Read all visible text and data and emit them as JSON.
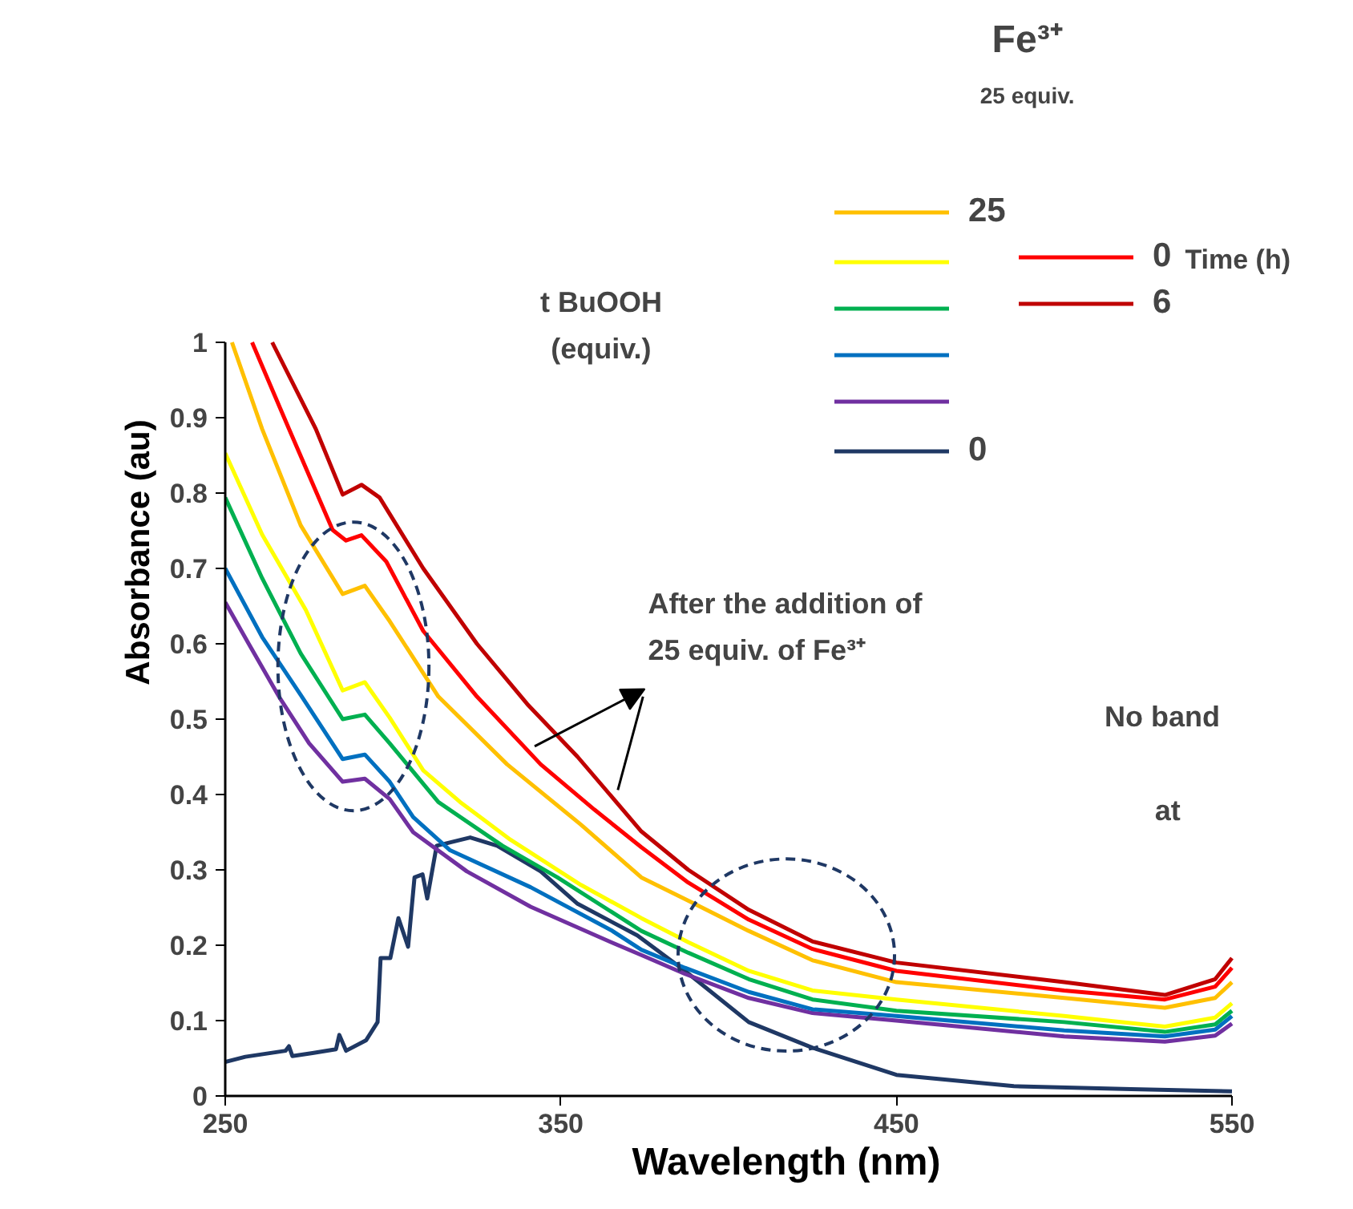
{
  "chart_data": {
    "type": "line",
    "xlabel": "Wavelength (nm)",
    "ylabel": "Absorbance (au)",
    "xlim": [
      250,
      550
    ],
    "ylim": [
      0,
      1
    ],
    "xticks": [
      250,
      350,
      450,
      550
    ],
    "yticks": [
      0,
      0.1,
      0.2,
      0.3,
      0.4,
      0.5,
      0.6,
      0.7,
      0.8,
      0.9,
      1
    ],
    "grid": false,
    "legend": "top right",
    "marker": "none",
    "line_style": "solid",
    "annotations": [
      "Fe³⁺",
      "25 equiv.",
      "t BuOOH\n(equiv.)",
      "Time (h)",
      "After the addition of\n25 equiv. of Fe³⁺",
      "No band",
      "at"
    ],
    "series": [
      {
        "name": "0",
        "color": "#1f3864",
        "x": [
          250,
          256,
          262,
          268,
          269,
          270,
          276,
          283,
          284,
          286,
          292,
          295.4,
          296.3,
          299.2,
          301.6,
          304.5,
          306.4,
          308.8,
          310.2,
          313,
          323,
          331,
          344,
          355,
          372.8,
          387,
          406,
          425,
          450,
          485,
          520,
          550
        ],
        "values": [
          0.045,
          0.052,
          0.056,
          0.06,
          0.066,
          0.053,
          0.057,
          0.062,
          0.081,
          0.06,
          0.074,
          0.098,
          0.183,
          0.183,
          0.236,
          0.198,
          0.29,
          0.294,
          0.262,
          0.332,
          0.343,
          0.332,
          0.298,
          0.255,
          0.213,
          0.166,
          0.098,
          0.064,
          0.028,
          0.013,
          0.009,
          0.006
        ]
      },
      {
        "color": "#7030a0",
        "x": [
          250,
          257,
          266,
          275,
          285,
          291.6,
          299,
          306,
          322,
          341,
          365,
          374,
          387,
          406,
          425,
          450,
          500,
          530,
          545,
          550
        ],
        "values": [
          0.655,
          0.6,
          0.53,
          0.468,
          0.417,
          0.421,
          0.394,
          0.35,
          0.298,
          0.251,
          0.204,
          0.187,
          0.162,
          0.13,
          0.11,
          0.1,
          0.079,
          0.072,
          0.08,
          0.096
        ]
      },
      {
        "color": "#0070c0",
        "x": [
          250,
          261,
          272.5,
          285,
          291.6,
          299,
          306,
          317,
          341,
          365,
          374,
          387,
          406,
          425,
          450,
          500,
          530,
          545,
          550
        ],
        "values": [
          0.7,
          0.609,
          0.532,
          0.447,
          0.453,
          0.417,
          0.37,
          0.326,
          0.277,
          0.22,
          0.194,
          0.17,
          0.138,
          0.115,
          0.106,
          0.087,
          0.079,
          0.088,
          0.106
        ]
      },
      {
        "color": "#00b050",
        "x": [
          250,
          261,
          272.5,
          285,
          291.6,
          299,
          313.5,
          332.6,
          349,
          374,
          388,
          406,
          425,
          450,
          500,
          530,
          545,
          550
        ],
        "values": [
          0.794,
          0.687,
          0.587,
          0.5,
          0.506,
          0.468,
          0.39,
          0.332,
          0.29,
          0.219,
          0.19,
          0.155,
          0.128,
          0.113,
          0.098,
          0.085,
          0.095,
          0.113
        ]
      },
      {
        "color": "#ffff00",
        "x": [
          250,
          261,
          274,
          285,
          291.6,
          299,
          309,
          320,
          335,
          356,
          374,
          388,
          406,
          425,
          450,
          500,
          530,
          545,
          550
        ],
        "values": [
          0.853,
          0.745,
          0.645,
          0.538,
          0.549,
          0.502,
          0.432,
          0.39,
          0.34,
          0.28,
          0.236,
          0.204,
          0.166,
          0.14,
          0.128,
          0.106,
          0.092,
          0.104,
          0.123
        ]
      },
      {
        "name": "25",
        "color": "#ffc000",
        "x": [
          252,
          261,
          272.5,
          285,
          291.6,
          299,
          313.5,
          334,
          356,
          374,
          388.5,
          406,
          425,
          450,
          500,
          530,
          545,
          550
        ],
        "values": [
          1,
          0.885,
          0.757,
          0.666,
          0.677,
          0.63,
          0.53,
          0.44,
          0.36,
          0.29,
          0.258,
          0.219,
          0.18,
          0.151,
          0.13,
          0.117,
          0.13,
          0.151
        ]
      },
      {
        "name": "0",
        "color": "#ff0000",
        "x": [
          258,
          269,
          282,
          286,
          290.6,
          298,
          309,
          325,
          344,
          360,
          374,
          388,
          406,
          425,
          450,
          500,
          530,
          545,
          550
        ],
        "values": [
          1,
          0.885,
          0.751,
          0.737,
          0.744,
          0.709,
          0.617,
          0.53,
          0.44,
          0.38,
          0.33,
          0.283,
          0.234,
          0.195,
          0.166,
          0.14,
          0.128,
          0.145,
          0.17
        ]
      },
      {
        "name": "6",
        "color": "#c00000",
        "x": [
          264,
          277,
          285,
          290.6,
          296,
          309,
          325,
          340,
          355,
          374,
          388,
          406,
          425,
          450,
          500,
          530,
          545,
          550
        ],
        "values": [
          1,
          0.885,
          0.798,
          0.811,
          0.794,
          0.7,
          0.6,
          0.52,
          0.45,
          0.351,
          0.3,
          0.247,
          0.205,
          0.177,
          0.151,
          0.134,
          0.155,
          0.183
        ]
      }
    ]
  }
}
